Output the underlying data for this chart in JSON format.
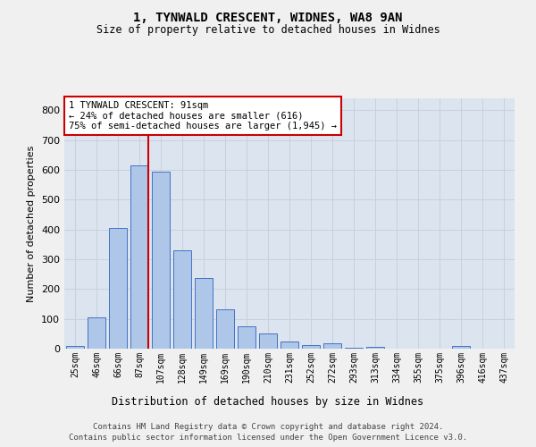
{
  "title1": "1, TYNWALD CRESCENT, WIDNES, WA8 9AN",
  "title2": "Size of property relative to detached houses in Widnes",
  "xlabel": "Distribution of detached houses by size in Widnes",
  "ylabel": "Number of detached properties",
  "categories": [
    "25sqm",
    "46sqm",
    "66sqm",
    "87sqm",
    "107sqm",
    "128sqm",
    "149sqm",
    "169sqm",
    "190sqm",
    "210sqm",
    "231sqm",
    "252sqm",
    "272sqm",
    "293sqm",
    "313sqm",
    "334sqm",
    "355sqm",
    "375sqm",
    "396sqm",
    "416sqm",
    "437sqm"
  ],
  "values": [
    8,
    105,
    405,
    616,
    593,
    330,
    237,
    133,
    76,
    51,
    25,
    13,
    17,
    3,
    7,
    0,
    0,
    0,
    8,
    0,
    0
  ],
  "bar_color": "#aec6e8",
  "bar_edge_color": "#4472c4",
  "vline_index": 3,
  "vline_color": "#cc0000",
  "annotation_text": "1 TYNWALD CRESCENT: 91sqm\n← 24% of detached houses are smaller (616)\n75% of semi-detached houses are larger (1,945) →",
  "annotation_box_color": "#ffffff",
  "annotation_box_edge_color": "#cc0000",
  "ylim": [
    0,
    840
  ],
  "yticks": [
    0,
    100,
    200,
    300,
    400,
    500,
    600,
    700,
    800
  ],
  "grid_color": "#c8d0dc",
  "background_color": "#dce4f0",
  "fig_background_color": "#f0f0f0",
  "footer1": "Contains HM Land Registry data © Crown copyright and database right 2024.",
  "footer2": "Contains public sector information licensed under the Open Government Licence v3.0."
}
